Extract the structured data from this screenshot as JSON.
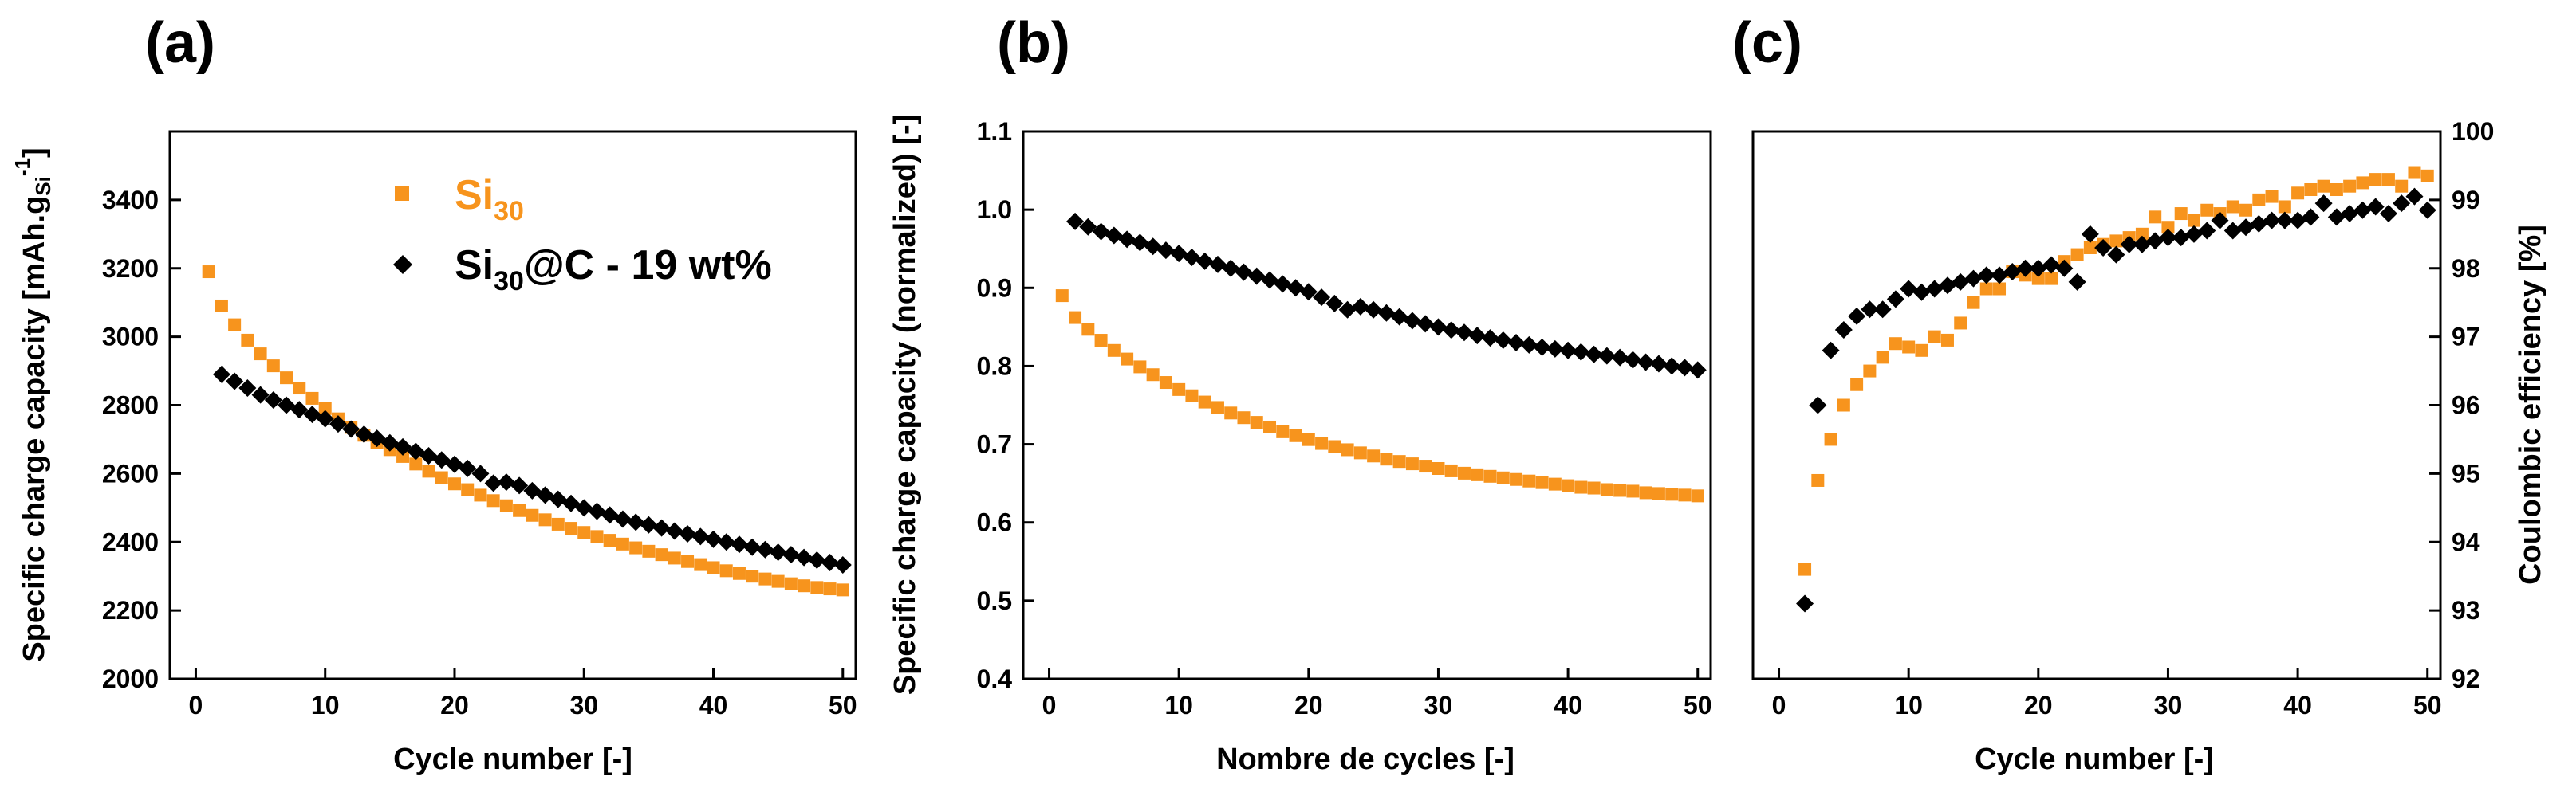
{
  "colors": {
    "si30": "#f7941d",
    "si30c": "#000000",
    "axis": "#000000"
  },
  "chart_data": [
    {
      "type": "scatter",
      "panel_label": "(a)",
      "xlabel": "Cycle number [-]",
      "ylabel_main": "Specific charge capacity [mAh.g",
      "ylabel_sub": "Si",
      "ylabel_sup": "-1",
      "ylabel_end": "]",
      "xlim": [
        -2,
        51
      ],
      "ylim": [
        2000,
        3600
      ],
      "xticks": [
        0,
        10,
        20,
        30,
        40,
        50
      ],
      "yticks": [
        2000,
        2200,
        2400,
        2600,
        2800,
        3000,
        3200,
        3400
      ],
      "legend": [
        {
          "name": "Si",
          "sub": "30",
          "suffix": "",
          "marker": "square",
          "color": "#f7941d"
        },
        {
          "name": "Si",
          "sub": "30",
          "suffix": "@C - 19 wt%",
          "marker": "diamond",
          "color": "#000000"
        }
      ],
      "series": [
        {
          "name": "Si30",
          "marker": "square",
          "color": "#f7941d",
          "x": [
            1,
            2,
            3,
            4,
            5,
            6,
            7,
            8,
            9,
            10,
            11,
            12,
            13,
            14,
            15,
            16,
            17,
            18,
            19,
            20,
            21,
            22,
            23,
            24,
            25,
            26,
            27,
            28,
            29,
            30,
            31,
            32,
            33,
            34,
            35,
            36,
            37,
            38,
            39,
            40,
            41,
            42,
            43,
            44,
            45,
            46,
            47,
            48,
            49,
            50
          ],
          "values": [
            3190,
            3090,
            3035,
            2990,
            2950,
            2915,
            2880,
            2850,
            2820,
            2790,
            2760,
            2735,
            2712,
            2690,
            2670,
            2650,
            2628,
            2607,
            2588,
            2570,
            2553,
            2537,
            2521,
            2506,
            2492,
            2478,
            2465,
            2452,
            2440,
            2428,
            2416,
            2405,
            2394,
            2383,
            2373,
            2363,
            2353,
            2343,
            2334,
            2325,
            2316,
            2308,
            2300,
            2292,
            2285,
            2278,
            2272,
            2267,
            2263,
            2260
          ]
        },
        {
          "name": "Si30@C - 19 wt%",
          "marker": "diamond",
          "color": "#000000",
          "x": [
            2,
            3,
            4,
            5,
            6,
            7,
            8,
            9,
            10,
            11,
            12,
            13,
            14,
            15,
            16,
            17,
            18,
            19,
            20,
            21,
            22,
            23,
            24,
            25,
            26,
            27,
            28,
            29,
            30,
            31,
            32,
            33,
            34,
            35,
            36,
            37,
            38,
            39,
            40,
            41,
            42,
            43,
            44,
            45,
            46,
            47,
            48,
            49,
            50
          ],
          "values": [
            2890,
            2870,
            2850,
            2830,
            2815,
            2800,
            2787,
            2773,
            2760,
            2745,
            2730,
            2715,
            2703,
            2690,
            2678,
            2665,
            2652,
            2640,
            2627,
            2615,
            2600,
            2572,
            2575,
            2565,
            2550,
            2537,
            2525,
            2513,
            2500,
            2490,
            2479,
            2467,
            2458,
            2450,
            2441,
            2432,
            2424,
            2416,
            2408,
            2400,
            2393,
            2385,
            2378,
            2370,
            2363,
            2355,
            2347,
            2340,
            2333
          ]
        }
      ]
    },
    {
      "type": "scatter",
      "panel_label": "(b)",
      "xlabel": "Nombre de cycles [-]",
      "ylabel": "Specific charge capacity (normalized) [-]",
      "xlim": [
        -2,
        51
      ],
      "ylim": [
        0.4,
        1.1
      ],
      "xticks": [
        0,
        10,
        20,
        30,
        40,
        50
      ],
      "yticks": [
        0.4,
        0.5,
        0.6,
        0.7,
        0.8,
        0.9,
        1.0,
        1.1
      ],
      "ytick_labels": [
        "0.4",
        "0.5",
        "0.6",
        "0.7",
        "0.8",
        "0.9",
        "1.0",
        "1.1"
      ],
      "series": [
        {
          "name": "Si30",
          "marker": "square",
          "color": "#f7941d",
          "x": [
            1,
            2,
            3,
            4,
            5,
            6,
            7,
            8,
            9,
            10,
            11,
            12,
            13,
            14,
            15,
            16,
            17,
            18,
            19,
            20,
            21,
            22,
            23,
            24,
            25,
            26,
            27,
            28,
            29,
            30,
            31,
            32,
            33,
            34,
            35,
            36,
            37,
            38,
            39,
            40,
            41,
            42,
            43,
            44,
            45,
            46,
            47,
            48,
            49,
            50
          ],
          "values": [
            0.89,
            0.862,
            0.847,
            0.833,
            0.82,
            0.809,
            0.799,
            0.789,
            0.779,
            0.77,
            0.762,
            0.754,
            0.747,
            0.74,
            0.734,
            0.728,
            0.722,
            0.716,
            0.711,
            0.706,
            0.701,
            0.697,
            0.693,
            0.689,
            0.685,
            0.681,
            0.678,
            0.675,
            0.672,
            0.669,
            0.666,
            0.663,
            0.661,
            0.659,
            0.657,
            0.655,
            0.653,
            0.651,
            0.649,
            0.647,
            0.645,
            0.644,
            0.642,
            0.641,
            0.64,
            0.638,
            0.637,
            0.636,
            0.635,
            0.634
          ]
        },
        {
          "name": "Si30@C - 19 wt%",
          "marker": "diamond",
          "color": "#000000",
          "x": [
            2,
            3,
            4,
            5,
            6,
            7,
            8,
            9,
            10,
            11,
            12,
            13,
            14,
            15,
            16,
            17,
            18,
            19,
            20,
            21,
            22,
            23,
            24,
            25,
            26,
            27,
            28,
            29,
            30,
            31,
            32,
            33,
            34,
            35,
            36,
            37,
            38,
            39,
            40,
            41,
            42,
            43,
            44,
            45,
            46,
            47,
            48,
            49,
            50
          ],
          "values": [
            0.985,
            0.978,
            0.972,
            0.967,
            0.962,
            0.958,
            0.953,
            0.948,
            0.944,
            0.939,
            0.934,
            0.93,
            0.925,
            0.92,
            0.915,
            0.91,
            0.905,
            0.9,
            0.895,
            0.888,
            0.88,
            0.872,
            0.876,
            0.872,
            0.868,
            0.863,
            0.858,
            0.854,
            0.85,
            0.846,
            0.843,
            0.839,
            0.836,
            0.833,
            0.83,
            0.827,
            0.824,
            0.822,
            0.82,
            0.818,
            0.815,
            0.813,
            0.811,
            0.808,
            0.805,
            0.803,
            0.8,
            0.798,
            0.795
          ]
        }
      ]
    },
    {
      "type": "scatter",
      "panel_label": "(c)",
      "xlabel": "Cycle number [-]",
      "ylabel": "Coulombic efficiency [%]",
      "ylabel_side": "right",
      "xlim": [
        -2,
        51
      ],
      "ylim": [
        92,
        100
      ],
      "xticks": [
        0,
        10,
        20,
        30,
        40,
        50
      ],
      "yticks": [
        92,
        93,
        94,
        95,
        96,
        97,
        98,
        99,
        100
      ],
      "series": [
        {
          "name": "Si30",
          "marker": "square",
          "color": "#f7941d",
          "x": [
            2,
            3,
            4,
            5,
            6,
            7,
            8,
            9,
            10,
            11,
            12,
            13,
            14,
            15,
            16,
            17,
            18,
            19,
            20,
            21,
            22,
            23,
            24,
            25,
            26,
            27,
            28,
            29,
            30,
            31,
            32,
            33,
            34,
            35,
            36,
            37,
            38,
            39,
            40,
            41,
            42,
            43,
            44,
            45,
            46,
            47,
            48,
            49,
            50
          ],
          "values": [
            93.6,
            94.9,
            95.5,
            96.0,
            96.3,
            96.5,
            96.7,
            96.9,
            96.85,
            96.8,
            97.0,
            96.95,
            97.2,
            97.5,
            97.7,
            97.7,
            97.95,
            97.9,
            97.85,
            97.85,
            98.1,
            98.2,
            98.3,
            98.35,
            98.4,
            98.45,
            98.5,
            98.75,
            98.6,
            98.8,
            98.7,
            98.85,
            98.8,
            98.9,
            98.85,
            99.0,
            99.05,
            98.9,
            99.1,
            99.15,
            99.2,
            99.15,
            99.2,
            99.25,
            99.3,
            99.3,
            99.2,
            99.4,
            99.35
          ]
        },
        {
          "name": "Si30@C - 19 wt%",
          "marker": "diamond",
          "color": "#000000",
          "x": [
            2,
            3,
            4,
            5,
            6,
            7,
            8,
            9,
            10,
            11,
            12,
            13,
            14,
            15,
            16,
            17,
            18,
            19,
            20,
            21,
            22,
            23,
            24,
            25,
            26,
            27,
            28,
            29,
            30,
            31,
            32,
            33,
            34,
            35,
            36,
            37,
            38,
            39,
            40,
            41,
            42,
            43,
            44,
            45,
            46,
            47,
            48,
            49,
            50
          ],
          "values": [
            93.1,
            96.0,
            96.8,
            97.1,
            97.3,
            97.4,
            97.4,
            97.55,
            97.7,
            97.65,
            97.7,
            97.75,
            97.8,
            97.85,
            97.9,
            97.9,
            97.95,
            98.0,
            98.0,
            98.05,
            98.0,
            97.8,
            98.5,
            98.3,
            98.2,
            98.35,
            98.35,
            98.4,
            98.45,
            98.45,
            98.5,
            98.55,
            98.7,
            98.55,
            98.6,
            98.65,
            98.7,
            98.7,
            98.7,
            98.75,
            98.95,
            98.75,
            98.8,
            98.85,
            98.9,
            98.8,
            98.95,
            99.05,
            98.85
          ]
        }
      ]
    }
  ]
}
